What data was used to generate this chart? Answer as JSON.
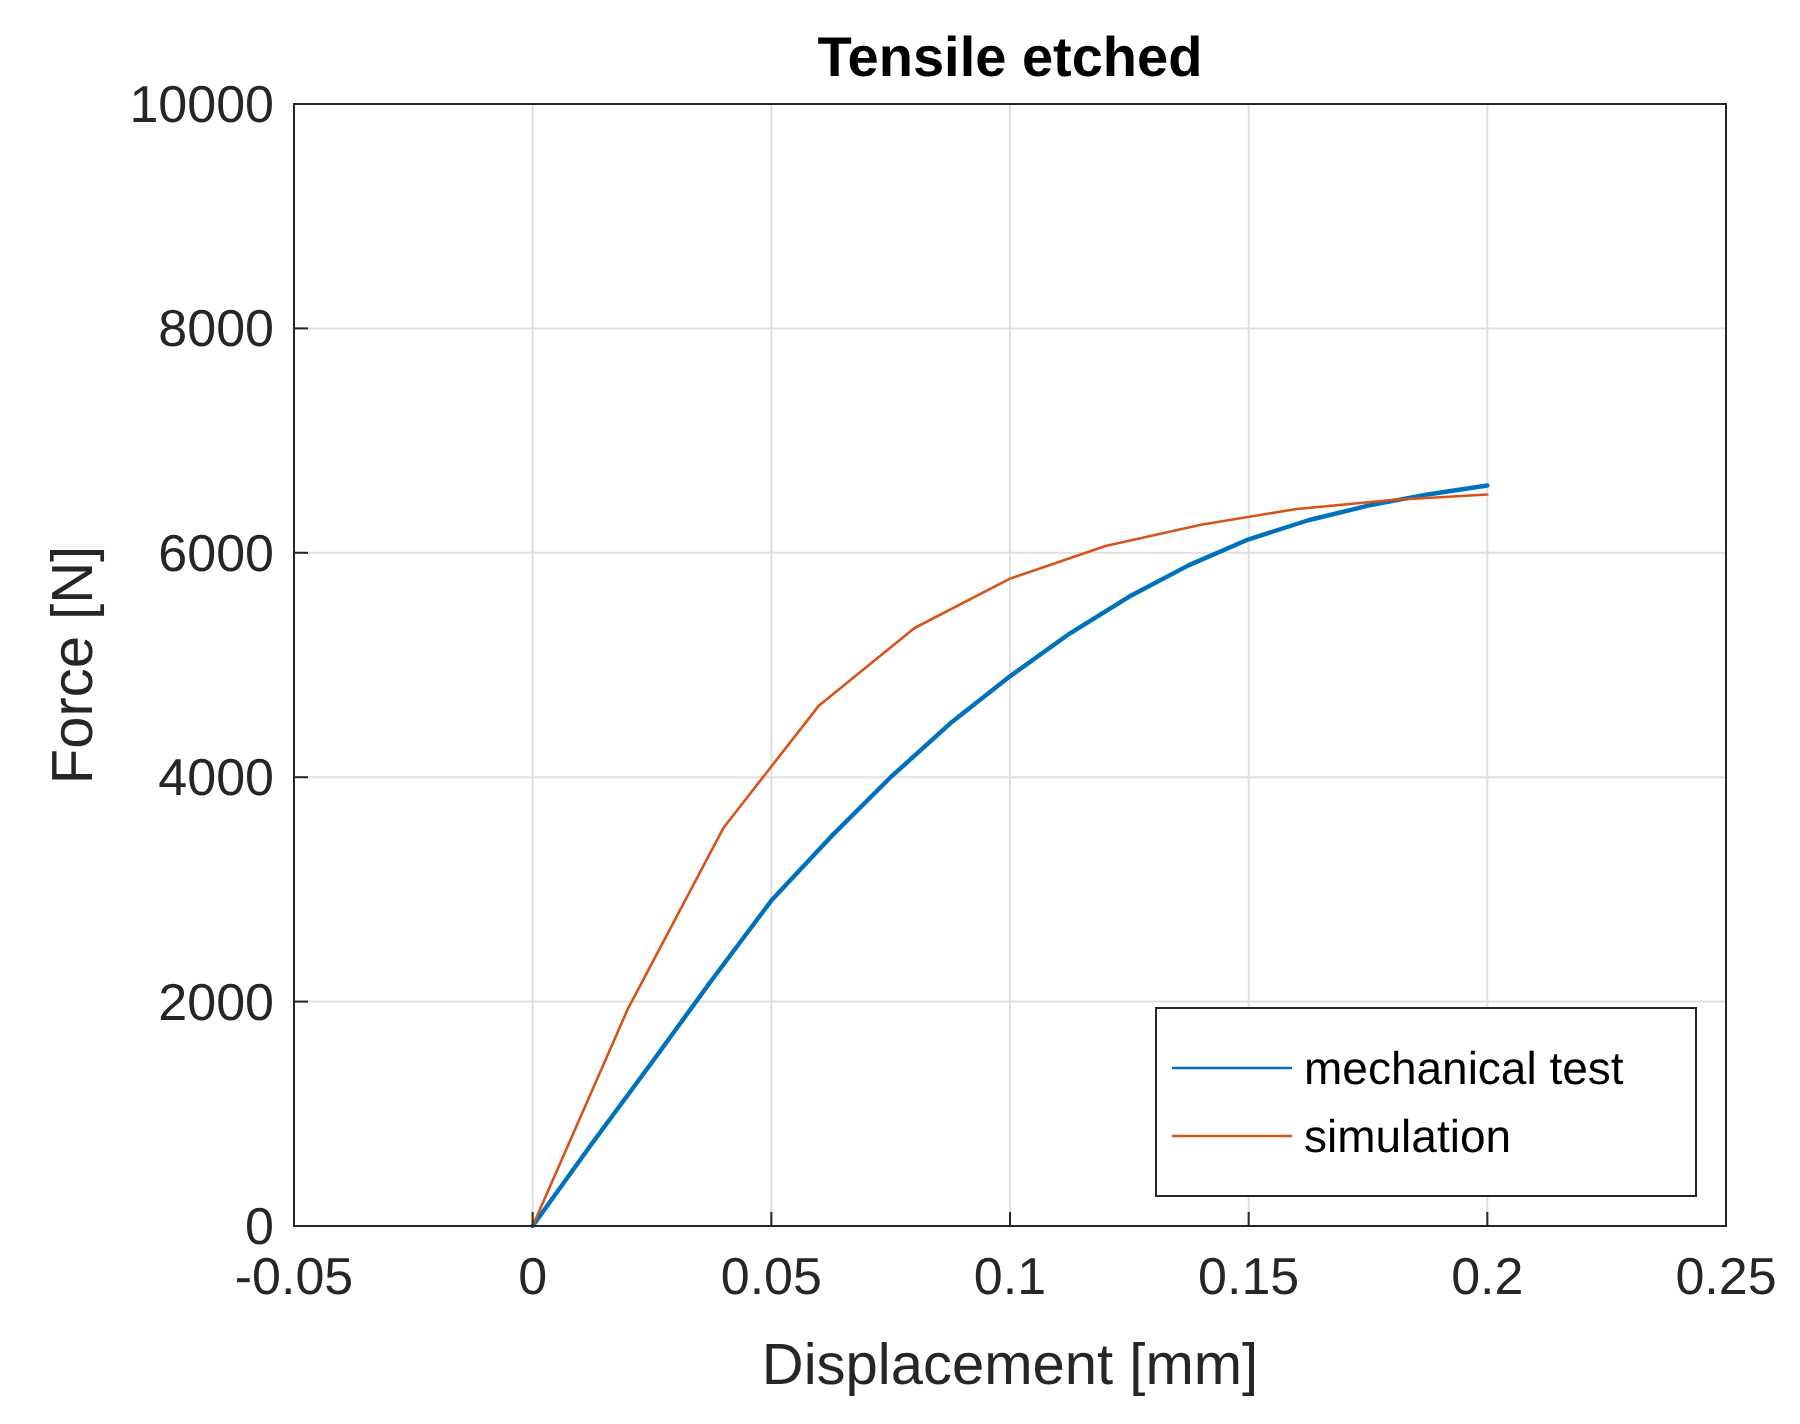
{
  "chart_data": {
    "type": "line",
    "title": "Tensile etched",
    "xlabel": "Displacement [mm]",
    "ylabel": "Force [N]",
    "xlim": [
      -0.05,
      0.25
    ],
    "xticks": [
      {
        "value": -0.05,
        "label": "-0.05"
      },
      0,
      0.05,
      0.1,
      0.15,
      0.2,
      0.25
    ],
    "ylim": [
      0,
      10000
    ],
    "yticks": [
      0,
      2000,
      4000,
      6000,
      8000,
      10000
    ],
    "grid": true,
    "legend": "bottom right",
    "series": [
      {
        "name": "mechanical test",
        "color": "#0072bd",
        "x": [
          0,
          0.0125,
          0.025,
          0.0375,
          0.05,
          0.0625,
          0.075,
          0.0875,
          0.1,
          0.1125,
          0.125,
          0.1375,
          0.15,
          0.1625,
          0.175,
          0.1875,
          0.2
        ],
        "values": [
          0,
          740,
          1460,
          2190,
          2900,
          3470,
          4000,
          4480,
          4900,
          5280,
          5610,
          5890,
          6120,
          6290,
          6420,
          6520,
          6600
        ]
      },
      {
        "name": "simulation",
        "color": "#d95319",
        "x": [
          0,
          0.02,
          0.04,
          0.06,
          0.08,
          0.1,
          0.12,
          0.14,
          0.16,
          0.18,
          0.2
        ],
        "values": [
          0,
          1940,
          3550,
          4640,
          5330,
          5770,
          6060,
          6250,
          6390,
          6470,
          6520
        ]
      }
    ]
  }
}
